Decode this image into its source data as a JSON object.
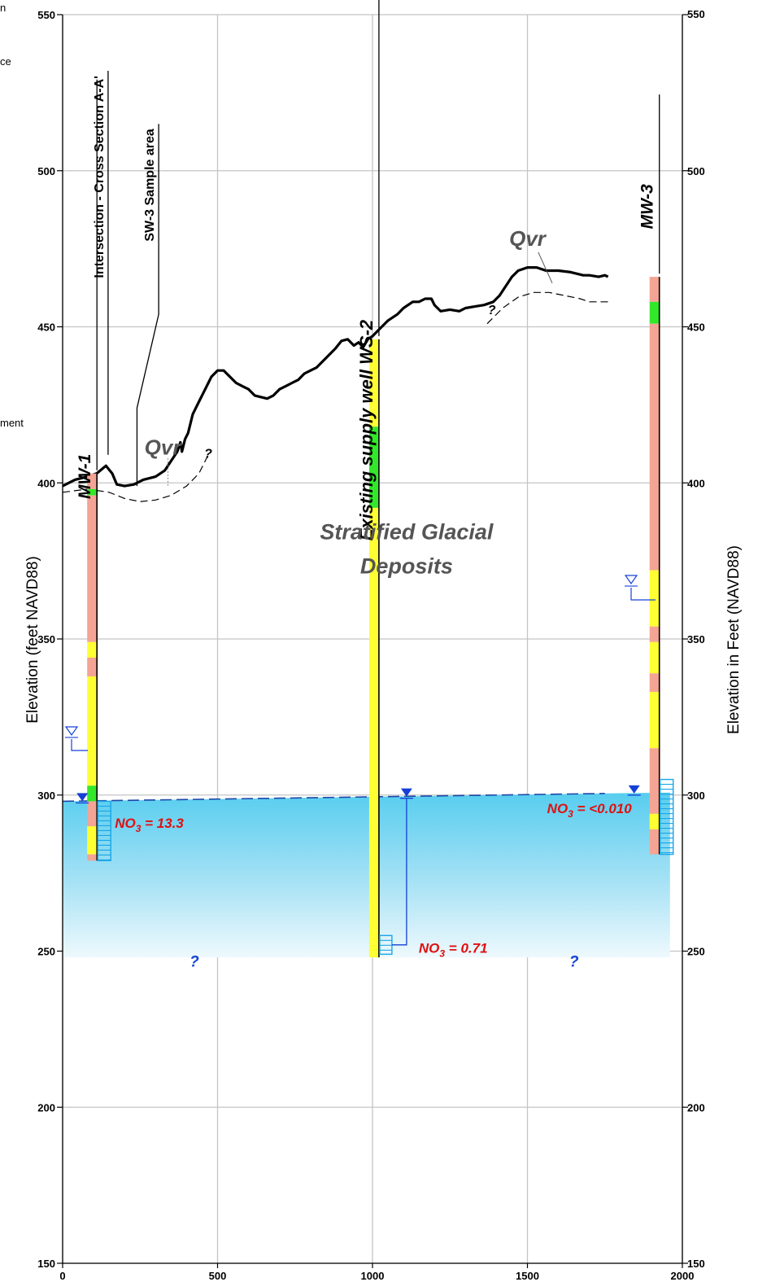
{
  "chart_data": {
    "type": "diagram",
    "x_range": [
      0,
      2000
    ],
    "y_range": [
      150,
      550
    ],
    "x_ticks": [
      0,
      500,
      1000,
      1500,
      2000
    ],
    "y_ticks": [
      150,
      200,
      250,
      300,
      350,
      400,
      450,
      500,
      550
    ],
    "left_axis_label": "Elevation (feet NAVD88)",
    "right_axis_label": "Elevation in Feet (NAVD88)",
    "grid": true,
    "clipped_margin_text": [
      "n",
      "ce",
      "ment"
    ],
    "ground_surface": [
      [
        0,
        399
      ],
      [
        40,
        401
      ],
      [
        80,
        402
      ],
      [
        110,
        403
      ],
      [
        140,
        405.5
      ],
      [
        160,
        403
      ],
      [
        175,
        399.5
      ],
      [
        200,
        399
      ],
      [
        230,
        399.5
      ],
      [
        260,
        401
      ],
      [
        300,
        402
      ],
      [
        330,
        404
      ],
      [
        350,
        407
      ],
      [
        370,
        410
      ],
      [
        380,
        413
      ],
      [
        385,
        410
      ],
      [
        395,
        414
      ],
      [
        405,
        416
      ],
      [
        420,
        422
      ],
      [
        440,
        426
      ],
      [
        460,
        430
      ],
      [
        480,
        434
      ],
      [
        500,
        436
      ],
      [
        520,
        436
      ],
      [
        540,
        434
      ],
      [
        560,
        432
      ],
      [
        580,
        431
      ],
      [
        600,
        430
      ],
      [
        620,
        428
      ],
      [
        640,
        427.5
      ],
      [
        660,
        427
      ],
      [
        680,
        428
      ],
      [
        700,
        430
      ],
      [
        720,
        431
      ],
      [
        740,
        432
      ],
      [
        760,
        433
      ],
      [
        780,
        435
      ],
      [
        800,
        436
      ],
      [
        820,
        437
      ],
      [
        850,
        440
      ],
      [
        880,
        443
      ],
      [
        900,
        445.5
      ],
      [
        920,
        446
      ],
      [
        940,
        444
      ],
      [
        955,
        445
      ],
      [
        970,
        443.5
      ],
      [
        985,
        446
      ],
      [
        1000,
        447
      ],
      [
        1020,
        449
      ],
      [
        1050,
        452
      ],
      [
        1080,
        454
      ],
      [
        1100,
        456
      ],
      [
        1130,
        458
      ],
      [
        1150,
        458
      ],
      [
        1170,
        459
      ],
      [
        1190,
        459
      ],
      [
        1200,
        457
      ],
      [
        1220,
        455
      ],
      [
        1250,
        455.5
      ],
      [
        1280,
        455
      ],
      [
        1300,
        456
      ],
      [
        1330,
        456.5
      ],
      [
        1360,
        457
      ],
      [
        1390,
        458
      ],
      [
        1410,
        460
      ],
      [
        1430,
        463
      ],
      [
        1450,
        466
      ],
      [
        1470,
        468
      ],
      [
        1500,
        469
      ],
      [
        1530,
        469
      ],
      [
        1560,
        468
      ],
      [
        1600,
        468
      ],
      [
        1640,
        467.5
      ],
      [
        1680,
        466.5
      ],
      [
        1700,
        466.5
      ],
      [
        1730,
        466
      ],
      [
        1750,
        466.5
      ],
      [
        1760,
        466
      ]
    ],
    "qvr_base": [
      [
        0,
        397
      ],
      [
        80,
        398
      ],
      [
        150,
        397
      ],
      [
        200,
        395
      ],
      [
        250,
        394
      ],
      [
        300,
        394.5
      ],
      [
        350,
        396
      ],
      [
        400,
        399
      ],
      [
        440,
        403
      ],
      [
        470,
        409
      ]
    ],
    "qvr_base_right": [
      [
        1370,
        451
      ],
      [
        1420,
        456
      ],
      [
        1470,
        459.5
      ],
      [
        1520,
        461
      ],
      [
        1570,
        461
      ],
      [
        1620,
        460
      ],
      [
        1670,
        459
      ],
      [
        1700,
        458
      ],
      [
        1730,
        458
      ],
      [
        1760,
        458
      ]
    ],
    "water_table": [
      [
        0,
        298
      ],
      [
        1750,
        300.5
      ]
    ],
    "water_table_fill_bottom": 248,
    "unit_labels": [
      {
        "text": "Qvr",
        "x": 323,
        "y": 409
      },
      {
        "text": "Qvr",
        "x": 1500,
        "y": 476
      },
      {
        "text": "Stratified Glacial",
        "x": 1110,
        "y": 382
      },
      {
        "text": "Deposits",
        "x": 1110,
        "y": 371
      }
    ],
    "question_marks": [
      {
        "text": "?",
        "x": 470,
        "y": 408
      },
      {
        "text": "?",
        "x": 1385,
        "y": 454
      },
      {
        "text": "?",
        "x": 425,
        "y": 245
      },
      {
        "text": "?",
        "x": 1650,
        "y": 245
      }
    ],
    "wells": [
      {
        "name": "MW-1",
        "x": 95,
        "top": 403,
        "bottom": 279,
        "lithology": [
          {
            "top": 403,
            "bottom": 398,
            "color": "#f4a494"
          },
          {
            "top": 398,
            "bottom": 396,
            "color": "#33e82a"
          },
          {
            "top": 396,
            "bottom": 349,
            "color": "#f4a494"
          },
          {
            "top": 349,
            "bottom": 344,
            "color": "#ffff33"
          },
          {
            "top": 344,
            "bottom": 338,
            "color": "#f4a494"
          },
          {
            "top": 338,
            "bottom": 303,
            "color": "#ffff33"
          },
          {
            "top": 303,
            "bottom": 298,
            "color": "#33e82a"
          },
          {
            "top": 298,
            "bottom": 290,
            "color": "#f4a494"
          },
          {
            "top": 290,
            "bottom": 281,
            "color": "#ffff33"
          },
          {
            "top": 281,
            "bottom": 279,
            "color": "#f4a494"
          }
        ],
        "screen": {
          "top": 298,
          "bottom": 279
        },
        "measured_level": 298,
        "nitrate": "NO3 = 13.3"
      },
      {
        "name": "Existing supply well WS-2",
        "x": 1005,
        "top": 446,
        "bottom": 248,
        "lithology": [
          {
            "top": 446,
            "bottom": 418,
            "color": "#ffff33"
          },
          {
            "top": 418,
            "bottom": 392,
            "color": "#33e82a"
          },
          {
            "top": 392,
            "bottom": 248,
            "color": "#ffff33"
          }
        ],
        "screen": {
          "top": 255,
          "bottom": 249
        },
        "measured_level": 299.5,
        "nitrate": "NO3 = 0.71"
      },
      {
        "name": "MW-3",
        "x": 1910,
        "top": 466,
        "bottom": 281,
        "lithology": [
          {
            "top": 466,
            "bottom": 458,
            "color": "#f4a494"
          },
          {
            "top": 458,
            "bottom": 451,
            "color": "#33e82a"
          },
          {
            "top": 451,
            "bottom": 372,
            "color": "#f4a494"
          },
          {
            "top": 372,
            "bottom": 354,
            "color": "#ffff33"
          },
          {
            "top": 354,
            "bottom": 349,
            "color": "#f4a494"
          },
          {
            "top": 349,
            "bottom": 339,
            "color": "#ffff33"
          },
          {
            "top": 339,
            "bottom": 333,
            "color": "#f4a494"
          },
          {
            "top": 333,
            "bottom": 315,
            "color": "#ffff33"
          },
          {
            "top": 315,
            "bottom": 294,
            "color": "#f4a494"
          },
          {
            "top": 294,
            "bottom": 289,
            "color": "#ffff33"
          },
          {
            "top": 289,
            "bottom": 281,
            "color": "#f4a494"
          }
        ],
        "screen": {
          "top": 305,
          "bottom": 281
        },
        "measured_level": 300.5,
        "nitrate": "NO3 = <0.010"
      }
    ],
    "vertical_labels": [
      {
        "text": "Intersection - Cross Section A-A'",
        "x": 110
      },
      {
        "text": "SW-3 Sample area",
        "x": 260
      }
    ]
  }
}
